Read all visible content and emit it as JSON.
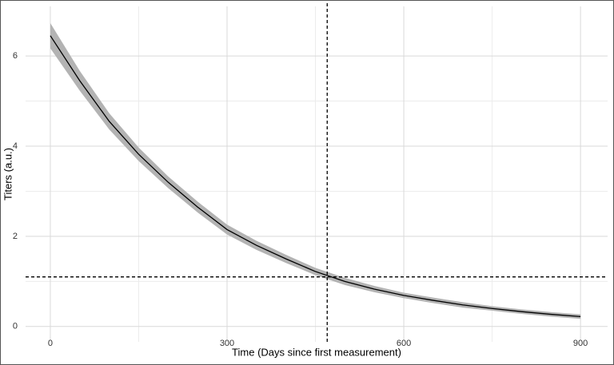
{
  "chart_data": {
    "type": "line",
    "x_label": "Time (Days since first measurement)",
    "y_label": "Titers (a.u.)",
    "x": [
      0,
      50,
      100,
      150,
      200,
      250,
      300,
      350,
      400,
      450,
      500,
      550,
      600,
      650,
      700,
      750,
      800,
      850,
      900
    ],
    "values": [
      6.45,
      5.45,
      4.55,
      3.82,
      3.2,
      2.65,
      2.15,
      1.8,
      1.5,
      1.22,
      1.0,
      0.83,
      0.69,
      0.58,
      0.48,
      0.4,
      0.33,
      0.27,
      0.22
    ],
    "lower": [
      6.17,
      5.23,
      4.37,
      3.67,
      3.07,
      2.53,
      2.04,
      1.7,
      1.41,
      1.14,
      0.92,
      0.76,
      0.63,
      0.52,
      0.42,
      0.35,
      0.28,
      0.22,
      0.17
    ],
    "upper": [
      6.73,
      5.67,
      4.73,
      3.97,
      3.33,
      2.77,
      2.26,
      1.9,
      1.59,
      1.3,
      1.08,
      0.9,
      0.75,
      0.64,
      0.54,
      0.45,
      0.38,
      0.32,
      0.27
    ],
    "color": "#000000",
    "band_color": "#b3b3b3",
    "reference_lines": {
      "x": 470,
      "y": 1.1
    },
    "xlim": [
      -42,
      946
    ],
    "ylim": [
      -0.34,
      7.1
    ],
    "xticks": [
      0,
      300,
      600,
      900
    ],
    "yticks": [
      0,
      2,
      4,
      6
    ],
    "x_minor_ticks": [
      150,
      450,
      750
    ],
    "y_minor_ticks": [
      1,
      3,
      5
    ],
    "grid": true
  }
}
